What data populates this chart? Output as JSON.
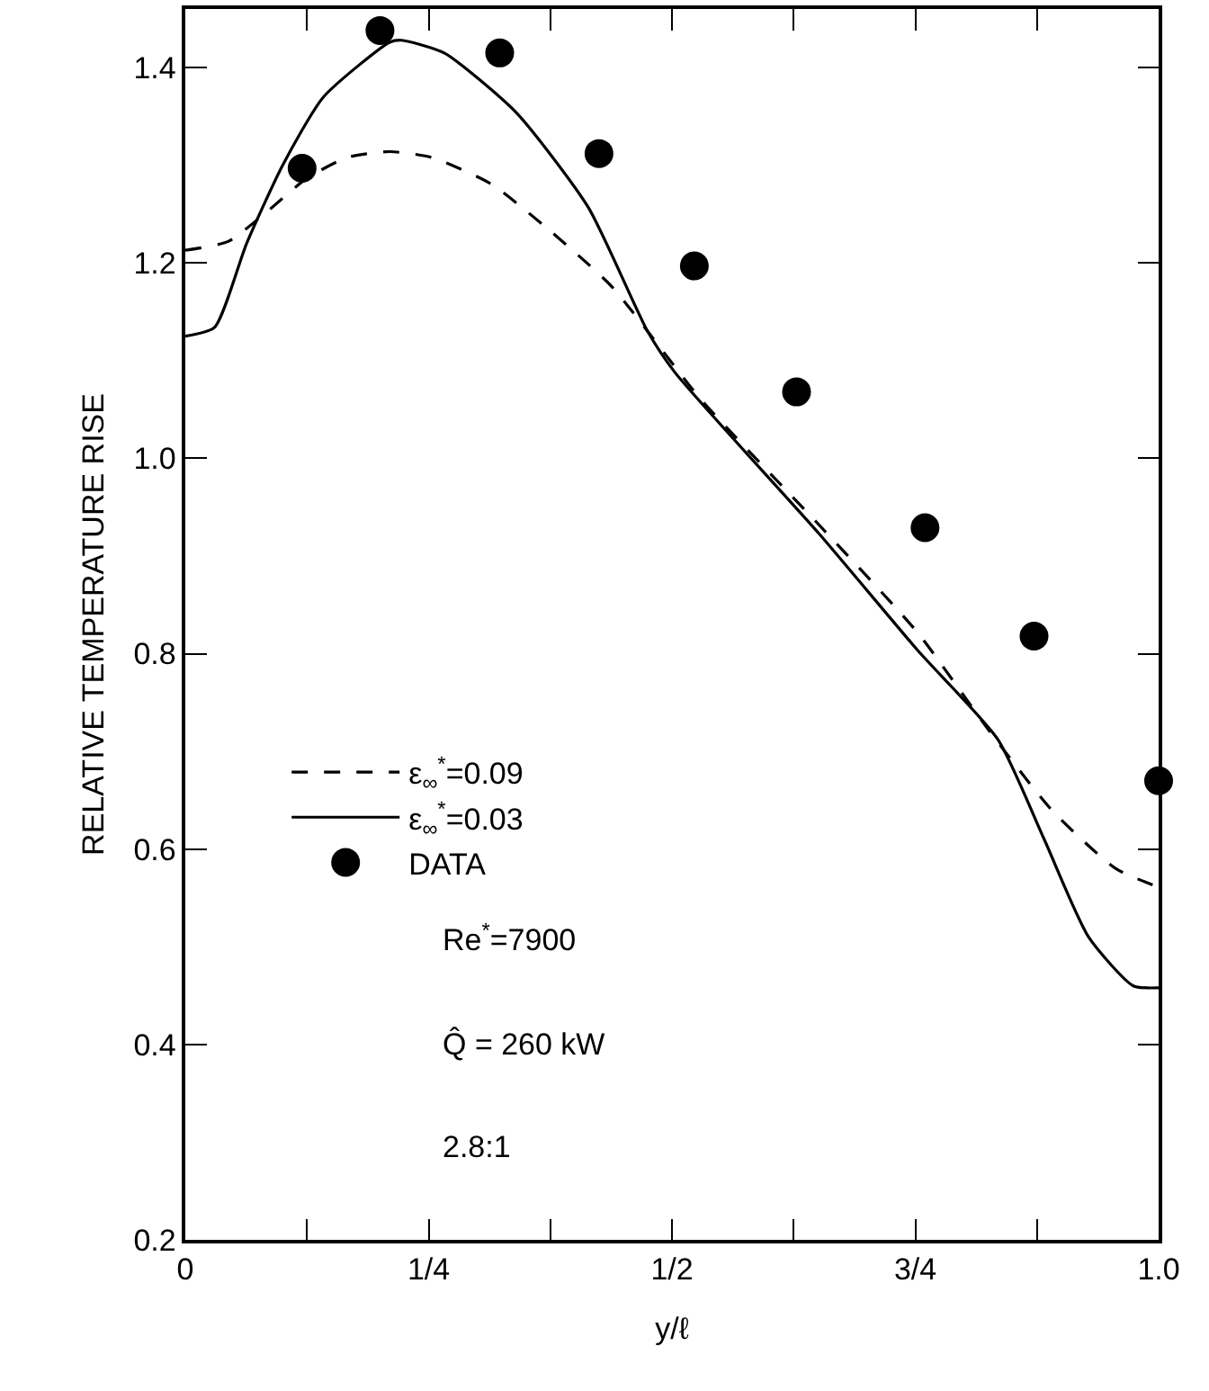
{
  "chart_data": {
    "type": "line",
    "xlabel": "y/ℓ",
    "ylabel": "RELATIVE TEMPERATURE RISE",
    "xlim": [
      0,
      1
    ],
    "ylim": [
      0.2,
      1.46
    ],
    "xticks": [
      {
        "value": 0,
        "label": "0"
      },
      {
        "value": 0.125,
        "label": null
      },
      {
        "value": 0.25,
        "label": "1/4"
      },
      {
        "value": 0.375,
        "label": null
      },
      {
        "value": 0.5,
        "label": "1/2"
      },
      {
        "value": 0.625,
        "label": null
      },
      {
        "value": 0.75,
        "label": "3/4"
      },
      {
        "value": 0.875,
        "label": null
      },
      {
        "value": 1,
        "label": "1.0"
      }
    ],
    "yticks": [
      0.2,
      0.4,
      0.6,
      0.8,
      {
        "value": 1,
        "label": "1.0"
      },
      1.2,
      1.4
    ],
    "grid": false,
    "legend": "bottom left",
    "series": [
      {
        "name": "ε$_{∞}$$^{*}$=0.09",
        "line_style": "dashed",
        "color": "#000000",
        "x": [
          0,
          0.044,
          0.081,
          0.124,
          0.166,
          0.21,
          0.253,
          0.314,
          0.377,
          0.438,
          0.53,
          0.651,
          0.752,
          0.826,
          0.891,
          0.956,
          1.0
        ],
        "values": [
          1.213,
          1.222,
          1.25,
          1.286,
          1.308,
          1.314,
          1.308,
          1.281,
          1.231,
          1.176,
          1.06,
          0.932,
          0.822,
          0.721,
          0.639,
          0.58,
          0.561
        ]
      },
      {
        "name": "ε$_{∞}$$^{*}$=0.03",
        "line_style": "solid",
        "color": "#000000",
        "x": [
          0,
          0.03,
          0.063,
          0.1,
          0.142,
          0.21,
          0.222,
          0.266,
          0.34,
          0.414,
          0.475,
          0.503,
          0.651,
          0.752,
          0.835,
          0.882,
          0.928,
          0.974,
          1.0
        ],
        "values": [
          1.125,
          1.134,
          1.22,
          1.3,
          1.37,
          1.426,
          1.428,
          1.415,
          1.354,
          1.257,
          1.13,
          1.088,
          0.923,
          0.804,
          0.712,
          0.611,
          0.51,
          0.46,
          0.458
        ]
      },
      {
        "name": "DATA",
        "type": "scatter",
        "marker": "circle",
        "color": "#000000",
        "x": [
          0.12,
          0.2,
          0.323,
          0.425,
          0.523,
          0.628,
          0.76,
          0.872,
          1.0
        ],
        "values": [
          1.297,
          1.438,
          1.415,
          1.312,
          1.197,
          1.068,
          0.929,
          0.818,
          0.67
        ]
      }
    ],
    "annotations": [
      "Re$^{*}$=7900",
      "Q̂ = 260 kW",
      "2.8:1"
    ]
  }
}
